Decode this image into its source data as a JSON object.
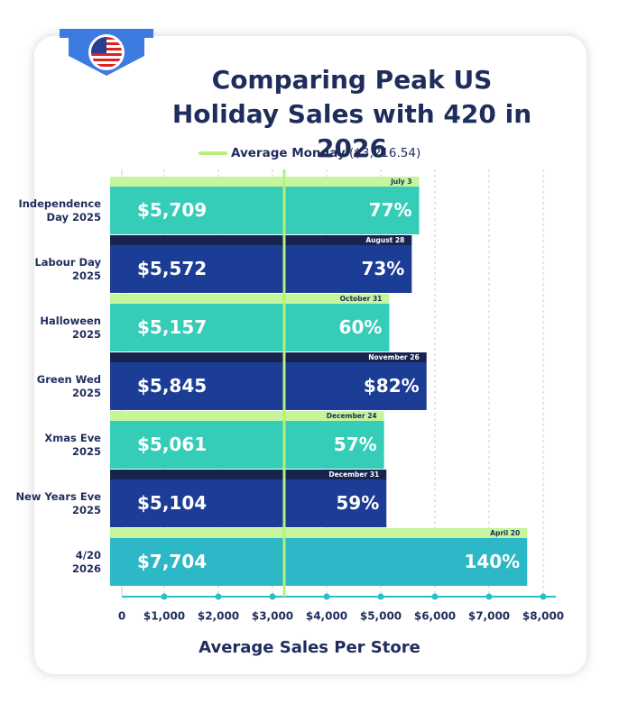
{
  "chart_data": {
    "type": "bar",
    "orientation": "horizontal",
    "title": "Comparing Peak US\nHoliday Sales with 420 in 2026",
    "x_label": "Average Sales Per Store",
    "categories": [
      "Independence\nDay 2025",
      "Labour Day\n2025",
      "Halloween\n2025",
      "Green Wed\n2025",
      "Xmas Eve\n2025",
      "New Years Eve\n2025",
      "4/20\n2026"
    ],
    "dates": [
      "July 3",
      "August 28",
      "October 31",
      "November 26",
      "December 24",
      "December 31",
      "April 20"
    ],
    "values": [
      5709,
      5572,
      5157,
      5845,
      5061,
      5104,
      7704
    ],
    "value_labels": [
      "$5,709",
      "$5,572",
      "$5,157",
      "$5,845",
      "$5,061",
      "$5,104",
      "$7,704"
    ],
    "percent_labels": [
      "77%",
      "73%",
      "60%",
      "$82%",
      "57%",
      "59%",
      "140%"
    ],
    "colors": [
      "#35cdb8",
      "#1c3d95",
      "#35cdb8",
      "#1c3d95",
      "#35cdb8",
      "#1c3d95",
      "#2cb8c6"
    ],
    "tab_colors": [
      "#c6f59c",
      "#17244f",
      "#c6f59c",
      "#17244f",
      "#c6f59c",
      "#17244f",
      "#c6f59c"
    ],
    "reference": {
      "name": "Average Monday",
      "value": 3216.54,
      "label": "($3,216.54)",
      "color": "#b8f07a"
    },
    "xlim": [
      0,
      8000
    ],
    "xticks": [
      0,
      {
        "value": 1000,
        "label": "$1,000"
      },
      {
        "value": 2000,
        "label": "$2,000"
      },
      {
        "value": 3000,
        "label": "$3,000"
      },
      {
        "value": 4000,
        "label": "$4,000"
      },
      {
        "value": 5000,
        "label": "$5,000"
      },
      {
        "value": 6000,
        "label": "$6,000"
      },
      {
        "value": 7000,
        "label": "$7,000"
      },
      {
        "value": 8000,
        "label": "$8,000"
      }
    ],
    "grid": true
  }
}
